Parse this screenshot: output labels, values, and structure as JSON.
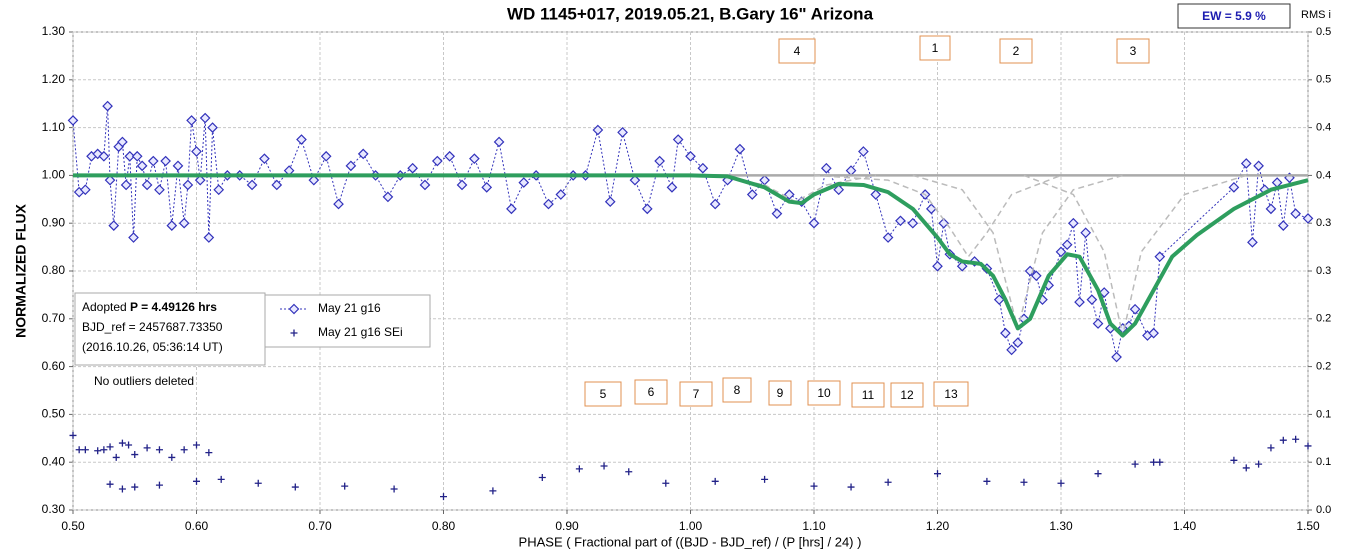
{
  "chart_data": {
    "type": "line",
    "title": "WD 1145+017, 2019.05.21, B.Gary 16\" Arizona",
    "x_label": "PHASE ( Fractional part of ((BJD - BJD_ref) / (P [hrs] / 24) )",
    "y_label": "NORMALIZED FLUX",
    "y2_label": "RMS i",
    "ew_label": "EW =  5.9 %",
    "info": {
      "prefix": "Adopted ",
      "period": "P = 4.49126 hrs",
      "ref": "BJD_ref = 2457687.73350",
      "date": "(2016.10.26, 05:36:14 UT)"
    },
    "note": "No outliers deleted",
    "annotations": [
      "4",
      "1",
      "2",
      "3",
      "5",
      "6",
      "7",
      "8",
      "9",
      "10",
      "11",
      "12",
      "13"
    ],
    "xlim": [
      0.5,
      1.5
    ],
    "xticks": [
      {
        "value": 0.5,
        "label": "0.50"
      },
      {
        "value": 0.6,
        "label": "0.60"
      },
      {
        "value": 0.7,
        "label": "0.70"
      },
      {
        "value": 0.8,
        "label": "0.80"
      },
      {
        "value": 0.9,
        "label": "0.90"
      },
      {
        "value": 1.0,
        "label": "1.00"
      },
      {
        "value": 1.1,
        "label": "1.10"
      },
      {
        "value": 1.2,
        "label": "1.20"
      },
      {
        "value": 1.3,
        "label": "1.30"
      },
      {
        "value": 1.4,
        "label": "1.40"
      },
      {
        "value": 1.5,
        "label": "1.50"
      }
    ],
    "ylim": [
      0.3,
      1.3
    ],
    "yticks": [
      {
        "value": 0.3,
        "label": "0.30"
      },
      {
        "value": 0.4,
        "label": "0.40"
      },
      {
        "value": 0.5,
        "label": "0.50"
      },
      {
        "value": 0.6,
        "label": "0.60"
      },
      {
        "value": 0.7,
        "label": "0.70"
      },
      {
        "value": 0.8,
        "label": "0.80"
      },
      {
        "value": 0.9,
        "label": "0.90"
      },
      {
        "value": 1.0,
        "label": "1.00"
      },
      {
        "value": 1.1,
        "label": "1.10"
      },
      {
        "value": 1.2,
        "label": "1.20"
      },
      {
        "value": 1.3,
        "label": "1.30"
      }
    ],
    "y2lim": [
      0,
      0.5
    ],
    "y2ticks": [
      {
        "value": 0,
        "label": "0.0"
      },
      0.1,
      {
        "value": 0.05,
        "label": "0.1"
      },
      {
        "value": 0.15,
        "label": "0.2"
      },
      0.2,
      {
        "value": 0.25,
        "label": "0.3"
      },
      0.3,
      {
        "value": 0.35,
        "label": "0.4"
      },
      0.4,
      {
        "value": 0.45,
        "label": "0.5"
      },
      0.5
    ],
    "grid": true,
    "series": [
      {
        "name": "May 21 g16",
        "color": "#3333bb",
        "marker": "diamond",
        "line": "dotted",
        "x": [
          0.5,
          0.505,
          0.51,
          0.515,
          0.52,
          0.525,
          0.528,
          0.53,
          0.533,
          0.537,
          0.54,
          0.543,
          0.546,
          0.549,
          0.552,
          0.556,
          0.56,
          0.565,
          0.57,
          0.575,
          0.58,
          0.585,
          0.59,
          0.593,
          0.596,
          0.6,
          0.603,
          0.607,
          0.61,
          0.613,
          0.618,
          0.625,
          0.635,
          0.645,
          0.655,
          0.665,
          0.675,
          0.685,
          0.695,
          0.705,
          0.715,
          0.725,
          0.735,
          0.745,
          0.755,
          0.765,
          0.775,
          0.785,
          0.795,
          0.805,
          0.815,
          0.825,
          0.835,
          0.845,
          0.855,
          0.865,
          0.875,
          0.885,
          0.895,
          0.905,
          0.915,
          0.925,
          0.935,
          0.945,
          0.955,
          0.965,
          0.975,
          0.985,
          0.99,
          1.0,
          1.01,
          1.02,
          1.03,
          1.04,
          1.05,
          1.06,
          1.07,
          1.08,
          1.09,
          1.1,
          1.11,
          1.12,
          1.13,
          1.14,
          1.15,
          1.16,
          1.17,
          1.18,
          1.19,
          1.195,
          1.2,
          1.205,
          1.21,
          1.22,
          1.23,
          1.24,
          1.25,
          1.255,
          1.26,
          1.265,
          1.27,
          1.275,
          1.28,
          1.285,
          1.29,
          1.3,
          1.305,
          1.31,
          1.315,
          1.32,
          1.325,
          1.33,
          1.335,
          1.34,
          1.345,
          1.35,
          1.355,
          1.36,
          1.37,
          1.375,
          1.38,
          1.44,
          1.45,
          1.455,
          1.46,
          1.465,
          1.47,
          1.475,
          1.48,
          1.485,
          1.49,
          1.5
        ],
        "values": [
          1.115,
          0.965,
          0.97,
          1.04,
          1.045,
          1.04,
          1.145,
          0.99,
          0.895,
          1.06,
          1.07,
          0.98,
          1.04,
          0.87,
          1.04,
          1.02,
          0.98,
          1.03,
          0.97,
          1.03,
          0.895,
          1.02,
          0.9,
          0.98,
          1.115,
          1.05,
          0.99,
          1.12,
          0.87,
          1.1,
          0.97,
          1.0,
          1.0,
          0.98,
          1.035,
          0.98,
          1.01,
          1.075,
          0.99,
          1.04,
          0.94,
          1.02,
          1.045,
          1.0,
          0.955,
          1.0,
          1.015,
          0.98,
          1.03,
          1.04,
          0.98,
          1.035,
          0.975,
          1.07,
          0.93,
          0.985,
          1.0,
          0.94,
          0.96,
          1.0,
          1.0,
          1.095,
          0.945,
          1.09,
          0.99,
          0.93,
          1.03,
          0.975,
          1.075,
          1.04,
          1.015,
          0.94,
          0.99,
          1.055,
          0.96,
          0.99,
          0.92,
          0.96,
          0.945,
          0.9,
          1.015,
          0.97,
          1.01,
          1.05,
          0.96,
          0.87,
          0.905,
          0.9,
          0.96,
          0.93,
          0.81,
          0.9,
          0.835,
          0.81,
          0.82,
          0.805,
          0.74,
          0.67,
          0.635,
          0.65,
          0.7,
          0.8,
          0.79,
          0.74,
          0.77,
          0.84,
          0.855,
          0.9,
          0.735,
          0.88,
          0.74,
          0.69,
          0.755,
          0.68,
          0.62,
          0.68,
          0.685,
          0.72,
          0.665,
          0.67,
          0.83,
          0.975,
          1.025,
          0.86,
          1.02,
          0.97,
          0.93,
          0.985,
          0.895,
          0.995,
          0.92,
          0.91
        ]
      },
      {
        "name": "May 21 g16 SEi",
        "color": "#222288",
        "marker": "plus",
        "axis": "y2",
        "x": [
          0.5,
          0.505,
          0.51,
          0.52,
          0.525,
          0.53,
          0.535,
          0.54,
          0.545,
          0.55,
          0.56,
          0.57,
          0.58,
          0.59,
          0.6,
          0.61,
          0.53,
          0.54,
          0.55,
          0.57,
          0.6,
          0.62,
          0.65,
          0.68,
          0.72,
          0.76,
          0.8,
          0.84,
          0.88,
          0.91,
          0.93,
          0.95,
          0.98,
          1.02,
          1.06,
          1.1,
          1.13,
          1.16,
          1.2,
          1.24,
          1.27,
          1.3,
          1.33,
          1.36,
          1.375,
          1.38,
          1.44,
          1.45,
          1.46,
          1.47,
          1.48,
          1.49,
          1.5
        ],
        "values": [
          0.078,
          0.063,
          0.063,
          0.062,
          0.063,
          0.066,
          0.055,
          0.07,
          0.068,
          0.058,
          0.065,
          0.063,
          0.055,
          0.063,
          0.068,
          0.06,
          0.027,
          0.022,
          0.024,
          0.026,
          0.03,
          0.032,
          0.028,
          0.024,
          0.025,
          0.022,
          0.014,
          0.02,
          0.034,
          0.043,
          0.046,
          0.04,
          0.028,
          0.03,
          0.032,
          0.025,
          0.024,
          0.029,
          0.038,
          0.03,
          0.029,
          0.028,
          0.038,
          0.048,
          0.05,
          0.05,
          0.052,
          0.044,
          0.048,
          0.065,
          0.073,
          0.074,
          0.067
        ]
      },
      {
        "color": "#aaaaaa",
        "line": "solid",
        "width": 2.5,
        "x": [
          0.5,
          1.5
        ],
        "values": [
          1.0,
          1.0
        ]
      },
      {
        "color": "#bbbbbb",
        "line": "dashed",
        "width": 1.5,
        "x": [
          1.02,
          1.06,
          1.085,
          1.11,
          1.15
        ],
        "values": [
          1.0,
          0.98,
          0.945,
          0.98,
          1.0
        ]
      },
      {
        "color": "#bbbbbb",
        "line": "dashed",
        "width": 1.5,
        "x": [
          1.1,
          1.16,
          1.19,
          1.21,
          1.225,
          1.24,
          1.26,
          1.3
        ],
        "values": [
          1.0,
          0.99,
          0.96,
          0.89,
          0.83,
          0.88,
          0.96,
          1.0
        ]
      },
      {
        "color": "#bbbbbb",
        "line": "dashed",
        "width": 1.5,
        "x": [
          1.18,
          1.22,
          1.245,
          1.265,
          1.285,
          1.31,
          1.35
        ],
        "values": [
          1.0,
          0.97,
          0.88,
          0.68,
          0.88,
          0.97,
          1.0
        ]
      },
      {
        "color": "#bbbbbb",
        "line": "dashed",
        "width": 1.5,
        "x": [
          1.27,
          1.31,
          1.335,
          1.35,
          1.365,
          1.4,
          1.45
        ],
        "values": [
          1.0,
          0.96,
          0.84,
          0.665,
          0.84,
          0.96,
          1.0
        ]
      },
      {
        "color": "#2e9e5e",
        "line": "solid",
        "width": 4,
        "x": [
          0.5,
          1.0,
          1.03,
          1.06,
          1.08,
          1.09,
          1.1,
          1.12,
          1.14,
          1.16,
          1.18,
          1.2,
          1.21,
          1.22,
          1.235,
          1.245,
          1.255,
          1.265,
          1.275,
          1.29,
          1.305,
          1.315,
          1.33,
          1.34,
          1.35,
          1.36,
          1.375,
          1.39,
          1.41,
          1.44,
          1.47,
          1.5
        ],
        "values": [
          1.0,
          1.0,
          0.998,
          0.975,
          0.945,
          0.942,
          0.96,
          0.982,
          0.98,
          0.965,
          0.93,
          0.87,
          0.835,
          0.82,
          0.815,
          0.79,
          0.74,
          0.68,
          0.7,
          0.79,
          0.835,
          0.83,
          0.76,
          0.69,
          0.665,
          0.69,
          0.76,
          0.83,
          0.875,
          0.93,
          0.97,
          0.99
        ]
      }
    ]
  }
}
